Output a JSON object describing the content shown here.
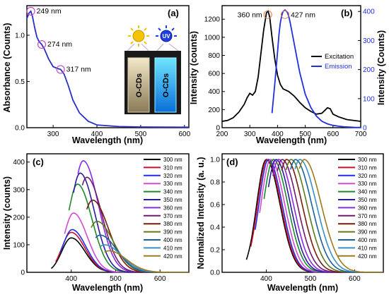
{
  "chart_data": [
    {
      "panel": "(a)",
      "type": "line",
      "xlabel": "Wavelength (nm)",
      "ylabel": "Absorbance (Counts)",
      "xlim": [
        240,
        610
      ],
      "ylim": [
        0,
        1.32
      ],
      "xticks": [
        "300",
        "400",
        "500",
        "600"
      ],
      "yticks": [
        "0.0",
        "0.5",
        "1.0"
      ],
      "series": [
        {
          "color": "#2a2ec8",
          "x": [
            240,
            245,
            249,
            253,
            258,
            263,
            268,
            274,
            280,
            290,
            300,
            310,
            317,
            325,
            335,
            345,
            360,
            380,
            400,
            450,
            500,
            550,
            600,
            610
          ],
          "y": [
            1.18,
            1.24,
            1.26,
            1.2,
            1.08,
            0.98,
            0.93,
            0.9,
            0.85,
            0.74,
            0.66,
            0.64,
            0.63,
            0.58,
            0.45,
            0.3,
            0.16,
            0.07,
            0.03,
            0.012,
            0.008,
            0.006,
            0.005,
            0.005
          ]
        }
      ],
      "annotations": [
        {
          "text": "249 nm",
          "x": 249,
          "y": 1.26
        },
        {
          "text": "274 nm",
          "x": 274,
          "y": 0.9
        },
        {
          "text": "317 nm",
          "x": 317,
          "y": 0.63
        }
      ],
      "inset_labels": {
        "uv": "UV",
        "cuvette_left": "O-CDs",
        "cuvette_right": "O-CDs"
      }
    },
    {
      "panel": "(b)",
      "type": "line",
      "xlabel": "Wavelength (nm)",
      "ylabel": "Intensity (counts)",
      "ylabel_right": "Intensity (Counts)",
      "xlim": [
        200,
        700
      ],
      "ylim": [
        0,
        1350
      ],
      "ylim_right": [
        0,
        420
      ],
      "xticks": [
        "200",
        "300",
        "400",
        "500",
        "600",
        "700"
      ],
      "yticks": [
        "0",
        "200",
        "400",
        "600",
        "800",
        "1000",
        "1200"
      ],
      "yticks_right": [
        "0",
        "100",
        "200",
        "300",
        "400"
      ],
      "series": [
        {
          "name": "Excitation",
          "color": "#000000",
          "axis": "left",
          "x": [
            200,
            220,
            240,
            260,
            280,
            290,
            300,
            310,
            320,
            330,
            340,
            350,
            360,
            366,
            372,
            380,
            390,
            400,
            410,
            420,
            440,
            460,
            480,
            500,
            520,
            540,
            560,
            580,
            590,
            600,
            620,
            650,
            700
          ],
          "y": [
            70,
            80,
            110,
            170,
            260,
            330,
            380,
            360,
            400,
            560,
            820,
            1080,
            1270,
            1290,
            1220,
            1000,
            760,
            580,
            480,
            430,
            400,
            350,
            280,
            220,
            180,
            150,
            160,
            220,
            210,
            150,
            120,
            90,
            70
          ]
        },
        {
          "name": "Emission",
          "color": "#1f2ee0",
          "axis": "right",
          "x": [
            380,
            390,
            400,
            405,
            410,
            415,
            420,
            427,
            435,
            440,
            445,
            450,
            460,
            470,
            480,
            500,
            520,
            540,
            560,
            580,
            600,
            620,
            640,
            660,
            680,
            700
          ],
          "y": [
            50,
            150,
            260,
            320,
            360,
            385,
            400,
            405,
            398,
            385,
            365,
            340,
            290,
            240,
            190,
            115,
            70,
            40,
            22,
            13,
            8,
            5,
            3,
            2,
            1,
            1
          ]
        }
      ],
      "annotations": [
        {
          "text": "360 nm",
          "x": 365,
          "y": 1290
        },
        {
          "text": "427 nm",
          "x": 427,
          "y": 1290
        }
      ],
      "legend": "right"
    },
    {
      "panel": "(c)",
      "type": "line",
      "xlabel": "Wavelength (nm)",
      "ylabel": "Intensity (counts)",
      "xlim": [
        300,
        665
      ],
      "ylim": [
        0,
        430
      ],
      "xticks": [
        "400",
        "500",
        "600"
      ],
      "yticks": [
        "0",
        "100",
        "200",
        "300",
        "400"
      ],
      "legend": "right",
      "series": [
        {
          "name": "300 nm",
          "color": "#000000",
          "excitation": 300,
          "peak": 400,
          "max": 125,
          "width": 38
        },
        {
          "name": "310 nm",
          "color": "#c8102e",
          "excitation": 310,
          "peak": 400,
          "max": 145,
          "width": 38
        },
        {
          "name": "320 nm",
          "color": "#1f2ee0",
          "excitation": 320,
          "peak": 402,
          "max": 155,
          "width": 38
        },
        {
          "name": "330 nm",
          "color": "#d34ad6",
          "excitation": 330,
          "peak": 405,
          "max": 215,
          "width": 38
        },
        {
          "name": "340 nm",
          "color": "#1b8a2a",
          "excitation": 340,
          "peak": 414,
          "max": 320,
          "width": 40
        },
        {
          "name": "350 nm",
          "color": "#2a1b9e",
          "excitation": 350,
          "peak": 420,
          "max": 360,
          "width": 40
        },
        {
          "name": "360 nm",
          "color": "#8a2be2",
          "excitation": 360,
          "peak": 427,
          "max": 405,
          "width": 42
        },
        {
          "name": "370 nm",
          "color": "#6e1b6e",
          "excitation": 370,
          "peak": 435,
          "max": 345,
          "width": 42
        },
        {
          "name": "380 nm",
          "color": "#7a1a0d",
          "excitation": 380,
          "peak": 448,
          "max": 262,
          "width": 44
        },
        {
          "name": "390 nm",
          "color": "#5f7a1a",
          "excitation": 390,
          "peak": 458,
          "max": 185,
          "width": 45
        },
        {
          "name": "400 nm",
          "color": "#1c5f9e",
          "excitation": 400,
          "peak": 465,
          "max": 135,
          "width": 46
        },
        {
          "name": "410 nm",
          "color": "#3a8fc8",
          "excitation": 410,
          "peak": 475,
          "max": 100,
          "width": 47
        },
        {
          "name": "420 nm",
          "color": "#a07a1a",
          "excitation": 420,
          "peak": 485,
          "max": 78,
          "width": 48
        }
      ]
    },
    {
      "panel": "(d)",
      "type": "line",
      "xlabel": "Wavelength (nm)",
      "ylabel": "Normalized Intensity (a. u.)",
      "xlim": [
        300,
        665
      ],
      "ylim": [
        0,
        1.05
      ],
      "xticks": [
        "400",
        "500",
        "600"
      ],
      "yticks": [
        "0.0",
        "0.2",
        "0.4",
        "0.6",
        "0.8",
        "1.0"
      ],
      "legend": "right",
      "series": [
        {
          "name": "300 nm",
          "color": "#000000",
          "excitation": 300,
          "peak": 400,
          "max": 1,
          "width": 38
        },
        {
          "name": "310 nm",
          "color": "#c8102e",
          "excitation": 310,
          "peak": 402,
          "max": 1,
          "width": 38
        },
        {
          "name": "320 nm",
          "color": "#1f2ee0",
          "excitation": 320,
          "peak": 405,
          "max": 1,
          "width": 38
        },
        {
          "name": "330 nm",
          "color": "#d34ad6",
          "excitation": 330,
          "peak": 410,
          "max": 1,
          "width": 39
        },
        {
          "name": "340 nm",
          "color": "#1b8a2a",
          "excitation": 340,
          "peak": 416,
          "max": 1,
          "width": 40
        },
        {
          "name": "350 nm",
          "color": "#2a1b9e",
          "excitation": 350,
          "peak": 422,
          "max": 1,
          "width": 40
        },
        {
          "name": "360 nm",
          "color": "#8a2be2",
          "excitation": 360,
          "peak": 428,
          "max": 1,
          "width": 41
        },
        {
          "name": "370 nm",
          "color": "#6e1b6e",
          "excitation": 370,
          "peak": 436,
          "max": 1,
          "width": 42
        },
        {
          "name": "380 nm",
          "color": "#7a1a0d",
          "excitation": 380,
          "peak": 446,
          "max": 1,
          "width": 43
        },
        {
          "name": "390 nm",
          "color": "#5f7a1a",
          "excitation": 390,
          "peak": 456,
          "max": 1,
          "width": 44
        },
        {
          "name": "400 nm",
          "color": "#1c5f9e",
          "excitation": 400,
          "peak": 466,
          "max": 1,
          "width": 45
        },
        {
          "name": "410 nm",
          "color": "#3a8fc8",
          "excitation": 410,
          "peak": 476,
          "max": 1,
          "width": 46
        },
        {
          "name": "420 nm",
          "color": "#a07a1a",
          "excitation": 420,
          "peak": 486,
          "max": 1,
          "width": 47
        }
      ]
    }
  ]
}
